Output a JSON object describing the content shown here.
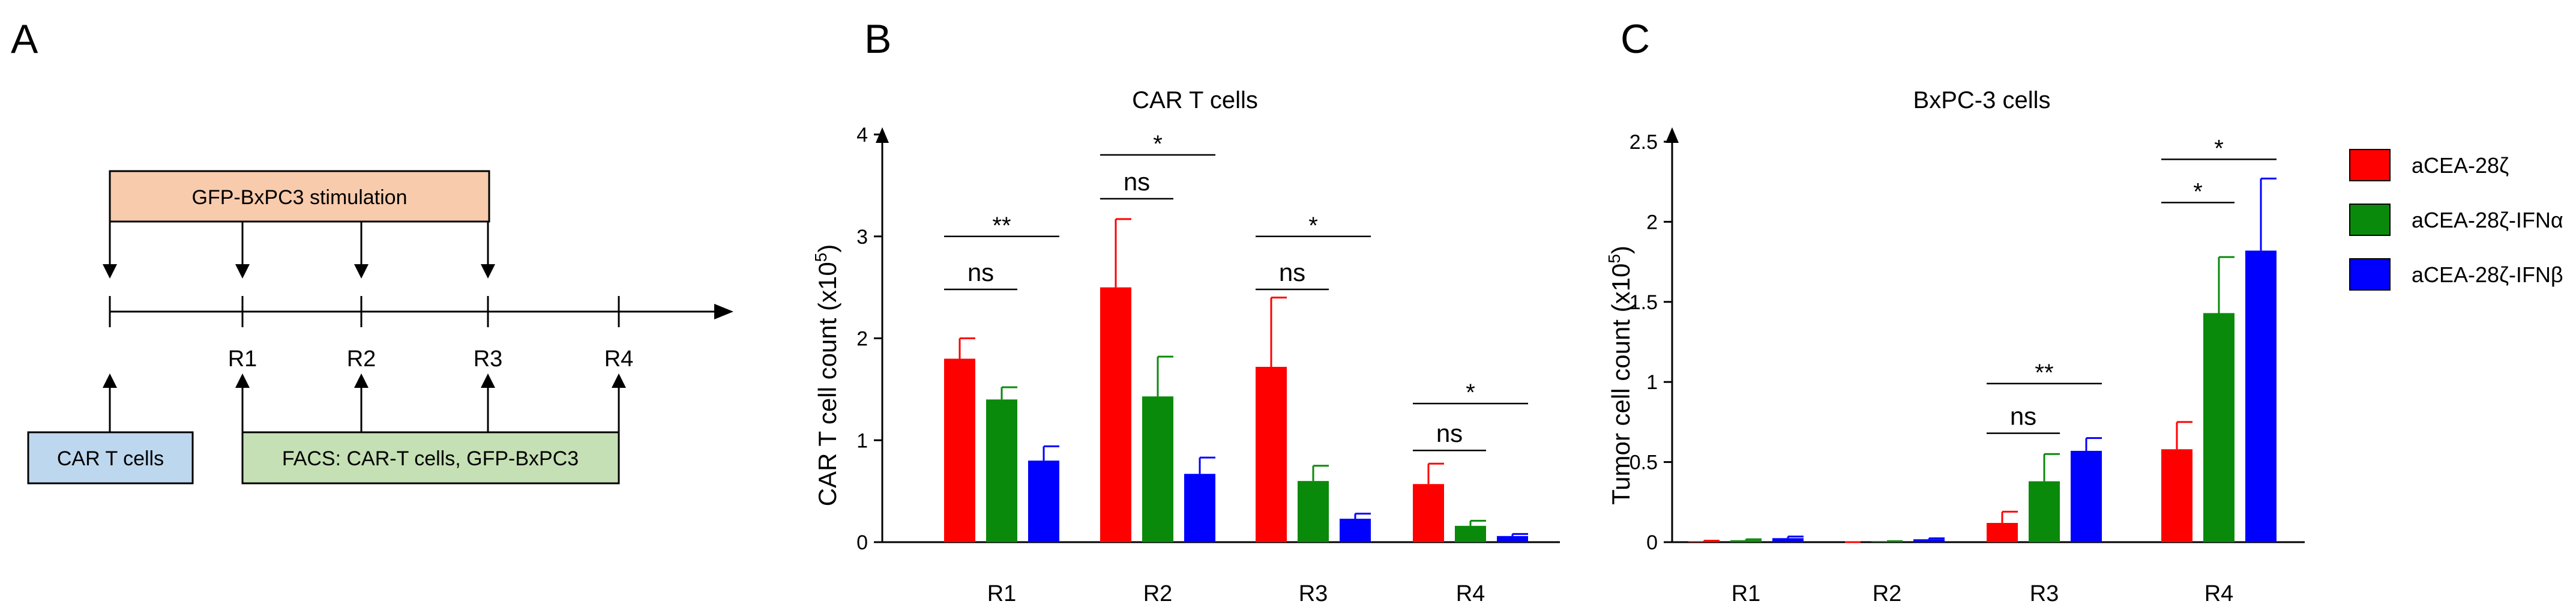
{
  "colors": {
    "red": "#ff0000",
    "green": "#0a8a0a",
    "blue": "#0000ff",
    "stim_fill": "#f8cbad",
    "cart_fill": "#bdd7ee",
    "facs_fill": "#c5e0b4"
  },
  "panel_a": {
    "letter": "A",
    "stimulation_label": "GFP-BxPC3  stimulation",
    "timepoints": [
      "R1",
      "R2",
      "R3",
      "R4"
    ],
    "cart_label": "CAR T cells",
    "facs_label": "FACS: CAR-T cells, GFP-BxPC3"
  },
  "legend": {
    "entries": [
      {
        "label": "aCEA-28ζ",
        "color": "#ff0000"
      },
      {
        "label": "aCEA-28ζ-IFNα",
        "color": "#0a8a0a"
      },
      {
        "label": "aCEA-28ζ-IFNβ",
        "color": "#0000ff"
      }
    ]
  },
  "chart_data": [
    {
      "panel": "B",
      "type": "bar",
      "title": "CAR T cells",
      "ylabel": "CAR T cell count (x10⁵)",
      "ylabel_main": "CAR T cell count (x10",
      "ylabel_exp": "5",
      "ylabel_close": ")",
      "xlabel": "",
      "ylim": [
        0,
        4
      ],
      "yticks": [
        0,
        1,
        2,
        3,
        4
      ],
      "ytick_labels": [
        "0",
        "1",
        "2",
        "3",
        "4"
      ],
      "categories": [
        "R1",
        "R2",
        "R3",
        "R4"
      ],
      "series": [
        {
          "name": "aCEA-28ζ",
          "values": [
            1.8,
            2.5,
            1.72,
            0.57
          ],
          "errors": [
            0.2,
            0.67,
            0.68,
            0.2
          ]
        },
        {
          "name": "aCEA-28ζ-IFNα",
          "values": [
            1.4,
            1.43,
            0.6,
            0.16
          ],
          "errors": [
            0.12,
            0.39,
            0.15,
            0.05
          ]
        },
        {
          "name": "aCEA-28ζ-IFNβ",
          "values": [
            0.8,
            0.67,
            0.23,
            0.06
          ],
          "errors": [
            0.14,
            0.16,
            0.05,
            0.02
          ]
        }
      ],
      "significance": [
        {
          "cat": 0,
          "from": 0,
          "to": 1,
          "label": "ns",
          "y": 2.48
        },
        {
          "cat": 0,
          "from": 0,
          "to": 2,
          "label": "**",
          "y": 3.0
        },
        {
          "cat": 1,
          "from": 0,
          "to": 1,
          "label": "ns",
          "y": 3.37
        },
        {
          "cat": 1,
          "from": 0,
          "to": 2,
          "label": "*",
          "y": 3.8
        },
        {
          "cat": 2,
          "from": 0,
          "to": 1,
          "label": "ns",
          "y": 2.48
        },
        {
          "cat": 2,
          "from": 0,
          "to": 2,
          "label": "*",
          "y": 3.0
        },
        {
          "cat": 3,
          "from": 0,
          "to": 1,
          "label": "ns",
          "y": 0.9
        },
        {
          "cat": 3,
          "from": 0,
          "to": 2,
          "label": "*",
          "y": 1.36
        }
      ]
    },
    {
      "panel": "C",
      "type": "bar",
      "title": "BxPC-3 cells",
      "ylabel": "Tumor cell count (x10⁵)",
      "ylabel_main": "Tumor cell count (x10",
      "ylabel_exp": "5",
      "ylabel_close": ")",
      "xlabel": "",
      "ylim": [
        0,
        2.5
      ],
      "yticks": [
        0,
        0.5,
        1,
        1.5,
        2,
        2.5
      ],
      "ytick_labels": [
        "0",
        "0.5",
        "1",
        "1.5",
        "2",
        "2.5"
      ],
      "categories": [
        "R1",
        "R2",
        "R3",
        "R4"
      ],
      "series": [
        {
          "name": "aCEA-28ζ",
          "values": [
            0.005,
            0.0,
            0.12,
            0.58
          ],
          "errors": [
            0.004,
            0.0,
            0.07,
            0.17
          ]
        },
        {
          "name": "aCEA-28ζ-IFNα",
          "values": [
            0.012,
            0.003,
            0.38,
            1.43
          ],
          "errors": [
            0.006,
            0.003,
            0.17,
            0.35
          ]
        },
        {
          "name": "aCEA-28ζ-IFNβ",
          "values": [
            0.025,
            0.018,
            0.57,
            1.82
          ],
          "errors": [
            0.01,
            0.006,
            0.08,
            0.45
          ]
        }
      ],
      "significance": [
        {
          "cat": 2,
          "from": 0,
          "to": 1,
          "label": "ns",
          "y": 0.68
        },
        {
          "cat": 2,
          "from": 0,
          "to": 2,
          "label": "**",
          "y": 0.99
        },
        {
          "cat": 3,
          "from": 0,
          "to": 1,
          "label": "*",
          "y": 2.12
        },
        {
          "cat": 3,
          "from": 0,
          "to": 2,
          "label": "*",
          "y": 2.39
        }
      ]
    }
  ]
}
